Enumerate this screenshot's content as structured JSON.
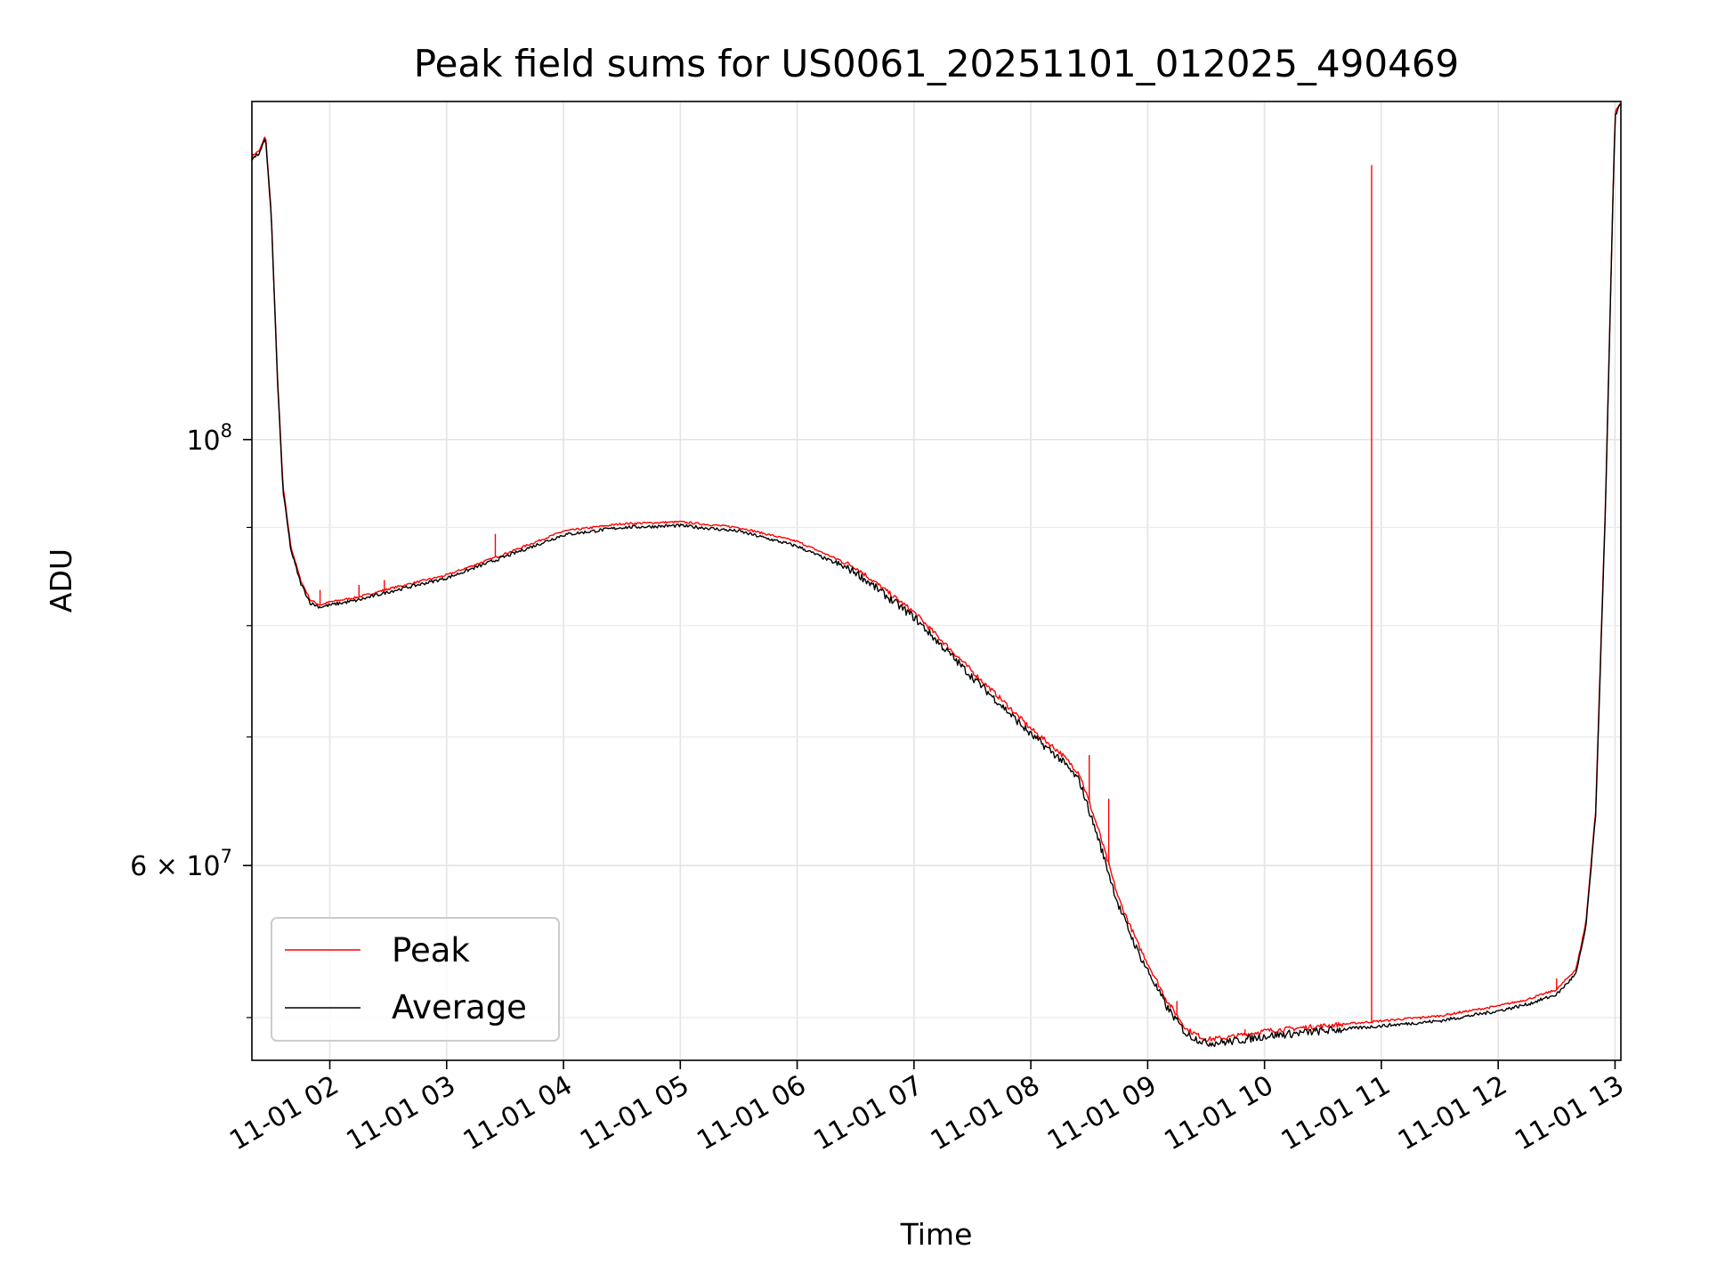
{
  "chart_data": {
    "type": "line",
    "title": "Peak field sums for US0061_20251101_012025_490469",
    "xlabel": "Time",
    "ylabel": "ADU",
    "yscale": "log",
    "grid": true,
    "legend_position": "lower-left",
    "xlim": [
      "2025-11-01 01:20",
      "2025-11-01 13:03"
    ],
    "ylim": [
      47500000,
      150000000
    ],
    "x_ticks": [
      "11-01 02",
      "11-01 03",
      "11-01 04",
      "11-01 05",
      "11-01 06",
      "11-01 07",
      "11-01 08",
      "11-01 09",
      "11-01 10",
      "11-01 11",
      "11-01 12",
      "11-01 13"
    ],
    "y_ticks": [
      "10^8",
      "6 × 10^7"
    ],
    "series": [
      {
        "name": "Peak",
        "color": "#ff0000",
        "x": [
          "01:20",
          "01:24",
          "01:27",
          "01:30",
          "01:33",
          "01:36",
          "01:40",
          "01:45",
          "01:50",
          "01:55",
          "02:00",
          "02:15",
          "02:30",
          "03:00",
          "03:30",
          "04:00",
          "04:30",
          "05:00",
          "05:30",
          "06:00",
          "06:30",
          "07:00",
          "07:30",
          "07:45",
          "08:00",
          "08:15",
          "08:25",
          "08:35",
          "08:45",
          "08:55",
          "09:10",
          "09:20",
          "09:30",
          "09:40",
          "09:50",
          "10:00",
          "10:30",
          "11:00",
          "11:30",
          "12:00",
          "12:15",
          "12:30",
          "12:40",
          "12:45",
          "12:50",
          "12:55",
          "13:00",
          "13:03"
        ],
        "y": [
          140500000,
          141500000,
          144000000,
          131000000,
          108500000,
          94500000,
          88000000,
          84500000,
          82500000,
          82000000,
          82300000,
          82800000,
          83600000,
          85000000,
          87200000,
          89600000,
          90400000,
          90600000,
          90000000,
          88500000,
          85800000,
          81300000,
          75700000,
          73200000,
          70700000,
          68700000,
          67000000,
          62500000,
          57700000,
          54600000,
          51000000,
          49300000,
          48700000,
          48800000,
          49000000,
          49200000,
          49500000,
          49800000,
          50100000,
          50700000,
          51100000,
          51700000,
          53000000,
          56000000,
          64000000,
          92000000,
          148000000,
          150000000
        ],
        "spikes": [
          {
            "x": "01:55",
            "y": 83500000
          },
          {
            "x": "02:15",
            "y": 84000000
          },
          {
            "x": "02:28",
            "y": 84500000
          },
          {
            "x": "03:25",
            "y": 89300000
          },
          {
            "x": "08:30",
            "y": 68500000
          },
          {
            "x": "08:40",
            "y": 65000000
          },
          {
            "x": "09:15",
            "y": 51000000
          },
          {
            "x": "09:50",
            "y": 49300000
          },
          {
            "x": "10:25",
            "y": 49500000
          },
          {
            "x": "10:55",
            "y": 139000000
          },
          {
            "x": "11:20",
            "y": 49900000
          },
          {
            "x": "11:40",
            "y": 50400000
          },
          {
            "x": "11:50",
            "y": 50500000
          },
          {
            "x": "12:30",
            "y": 52400000
          }
        ]
      },
      {
        "name": "Average",
        "color": "#000000",
        "x": [
          "01:20",
          "01:24",
          "01:27",
          "01:30",
          "01:33",
          "01:36",
          "01:40",
          "01:45",
          "01:50",
          "01:55",
          "02:00",
          "02:15",
          "02:30",
          "03:00",
          "03:30",
          "04:00",
          "04:30",
          "05:00",
          "05:30",
          "06:00",
          "06:30",
          "07:00",
          "07:30",
          "07:45",
          "08:00",
          "08:15",
          "08:25",
          "08:35",
          "08:45",
          "08:55",
          "09:10",
          "09:20",
          "09:30",
          "09:40",
          "09:50",
          "10:00",
          "10:30",
          "11:00",
          "11:30",
          "12:00",
          "12:15",
          "12:30",
          "12:40",
          "12:45",
          "12:50",
          "12:55",
          "13:00",
          "13:03"
        ],
        "y": [
          140000000,
          141000000,
          143500000,
          130500000,
          108000000,
          94000000,
          87600000,
          84200000,
          82200000,
          81800000,
          82000000,
          82500000,
          83300000,
          84700000,
          86900000,
          89200000,
          90000000,
          90200000,
          89600000,
          88000000,
          85300000,
          80800000,
          75200000,
          72700000,
          70200000,
          68200000,
          66400000,
          61800000,
          57200000,
          54100000,
          50600000,
          49000000,
          48500000,
          48550000,
          48700000,
          48900000,
          49200000,
          49500000,
          49800000,
          50400000,
          50800000,
          51400000,
          52700000,
          55700000,
          63600000,
          91500000,
          147500000,
          149800000
        ]
      }
    ]
  }
}
